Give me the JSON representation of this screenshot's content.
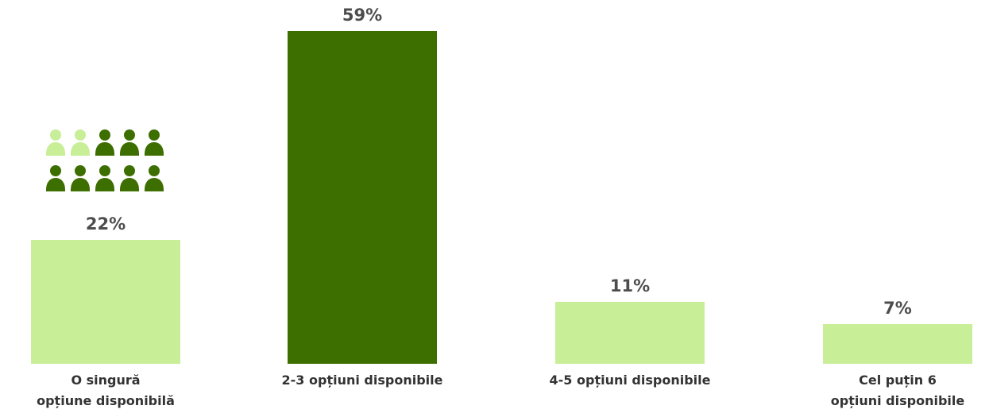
{
  "chart_data": {
    "type": "bar",
    "categories": [
      "O singură\nopțiune disponibilă",
      "2-3 opțiuni disponibile",
      "4-5 opțiuni disponibile",
      "Cel puțin 6\nopțiuni disponibile"
    ],
    "values": [
      22,
      59,
      11,
      7
    ],
    "value_labels": [
      "22%",
      "59%",
      "11%",
      "7%"
    ],
    "ylim": [
      0,
      59
    ],
    "colors": [
      "#c8ee98",
      "#3d6e00",
      "#c8ee98",
      "#c8ee98"
    ],
    "grid": false,
    "legend": "none",
    "pictogram": {
      "total": 10,
      "highlighted": 2,
      "highlight_color": "#c8ee98",
      "base_color": "#3d6e00",
      "icon": "person-icon"
    }
  }
}
